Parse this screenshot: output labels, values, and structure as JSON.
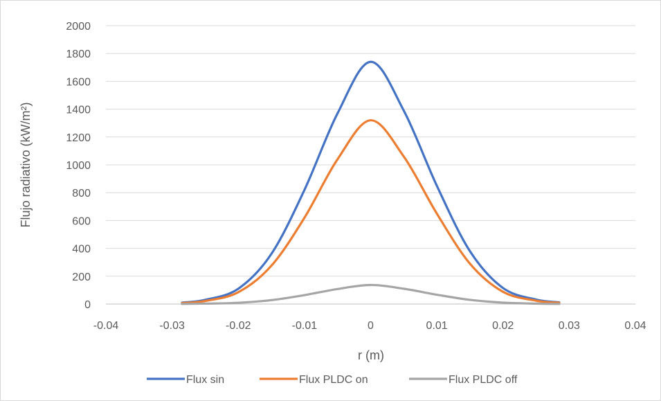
{
  "chart_data": {
    "type": "line",
    "title": "",
    "xlabel": "r (m)",
    "ylabel": "Flujo radiativo (kW/m²)",
    "xlim": [
      -0.04,
      0.04
    ],
    "ylim": [
      0,
      2000
    ],
    "x_ticks": [
      "-0.04",
      "-0.03",
      "-0.02",
      "-0.01",
      "0",
      "0.01",
      "0.02",
      "0.03",
      "0.04"
    ],
    "y_ticks": [
      "0",
      "200",
      "400",
      "600",
      "800",
      "1000",
      "1200",
      "1400",
      "1600",
      "1800",
      "2000"
    ],
    "grid": "horizontal",
    "legend_position": "bottom",
    "x": [
      -0.0285,
      -0.025,
      -0.02,
      -0.015,
      -0.01,
      -0.005,
      0,
      0.005,
      0.01,
      0.015,
      0.02,
      0.025,
      0.0285
    ],
    "series": [
      {
        "name": "Flux sin",
        "color": "#4472c4",
        "values": [
          10,
          30,
          110,
          360,
          820,
          1370,
          1740,
          1390,
          850,
          380,
          115,
          32,
          12
        ]
      },
      {
        "name": "Flux PLDC on",
        "color": "#ed7d31",
        "values": [
          7,
          22,
          85,
          275,
          620,
          1040,
          1320,
          1060,
          650,
          290,
          88,
          24,
          9
        ]
      },
      {
        "name": "Flux PLDC off",
        "color": "#a5a5a5",
        "values": [
          1,
          3,
          9,
          28,
          64,
          108,
          137,
          110,
          67,
          30,
          10,
          3,
          1
        ]
      }
    ]
  }
}
